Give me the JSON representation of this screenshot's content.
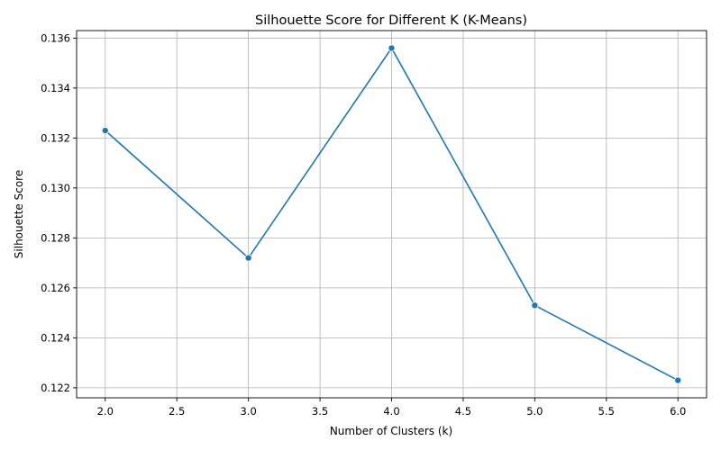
{
  "chart_data": {
    "type": "line",
    "title": "Silhouette Score for Different K (K-Means)",
    "xlabel": "Number of Clusters (k)",
    "ylabel": "Silhouette Score",
    "x": [
      2,
      3,
      4,
      5,
      6
    ],
    "series": [
      {
        "values": [
          0.1323,
          0.1272,
          0.1356,
          0.1253,
          0.1223
        ],
        "color": "#1f77b4",
        "marker": "circle"
      }
    ],
    "xlim": [
      1.8,
      6.2
    ],
    "ylim": [
      0.1216,
      0.1363
    ],
    "xticks": [
      2.0,
      2.5,
      3.0,
      3.5,
      4.0,
      4.5,
      5.0,
      5.5,
      6.0
    ],
    "xtick_labels": [
      "2.0",
      "2.5",
      "3.0",
      "3.5",
      "4.0",
      "4.5",
      "5.0",
      "5.5",
      "6.0"
    ],
    "yticks": [
      0.122,
      0.124,
      0.126,
      0.128,
      0.13,
      0.132,
      0.134,
      0.136
    ],
    "ytick_labels": [
      "0.122",
      "0.124",
      "0.126",
      "0.128",
      "0.130",
      "0.132",
      "0.134",
      "0.136"
    ],
    "grid": true,
    "legend": false
  }
}
